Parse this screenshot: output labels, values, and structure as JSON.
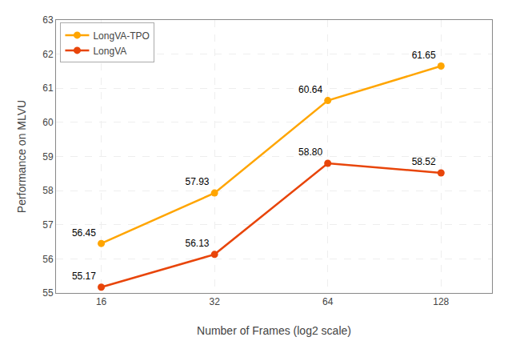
{
  "chart_data": {
    "type": "line",
    "x": [
      16,
      32,
      64,
      128
    ],
    "series": [
      {
        "name": "LongVA-TPO",
        "color": "#FFA500",
        "marker": "circle",
        "line_style": "solid",
        "values": [
          56.45,
          57.93,
          60.64,
          61.65
        ],
        "value_labels": [
          "56.45",
          "57.93",
          "60.64",
          "61.65"
        ]
      },
      {
        "name": "LongVA",
        "color": "#E8450A",
        "marker": "circle",
        "line_style": "solid",
        "values": [
          55.17,
          56.13,
          58.8,
          58.52
        ],
        "value_labels": [
          "55.17",
          "56.13",
          "58.80",
          "58.52"
        ]
      }
    ],
    "x_label": "Number of Frames (log2 scale)",
    "y_label": "Performance on MLVU",
    "log": "x",
    "xlim": [
      12.13,
      174.85
    ],
    "xticks": [
      16,
      32,
      64,
      128
    ],
    "ylim": [
      55,
      63
    ],
    "yticks": [
      55,
      56,
      57,
      58,
      59,
      60,
      61,
      62,
      63
    ],
    "grid": true,
    "legend": "upper left",
    "data_labels": true
  }
}
